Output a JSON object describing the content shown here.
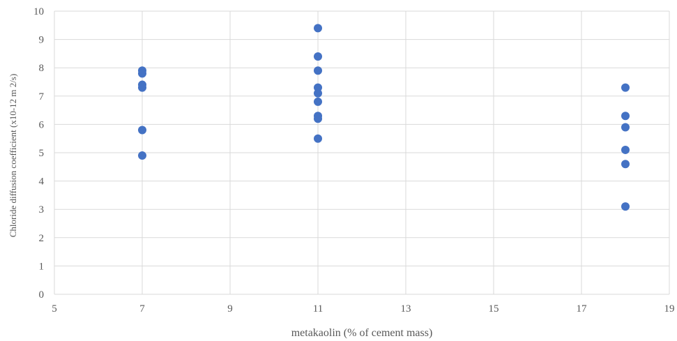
{
  "chart_data": {
    "type": "scatter",
    "title": "",
    "xlabel": "metakaolin (% of cement mass)",
    "ylabel": "Chloride diffusion coefficient (x10-12 m 2/s)",
    "xlim": [
      5,
      19
    ],
    "ylim": [
      0,
      10
    ],
    "x_ticks": [
      "5",
      "7",
      "9",
      "11",
      "13",
      "15",
      "17",
      "19"
    ],
    "y_ticks": [
      "0",
      "1",
      "2",
      "3",
      "4",
      "5",
      "6",
      "7",
      "8",
      "9",
      "10"
    ],
    "grid": true,
    "marker_color": "#4472c4",
    "gridline_color": "#d9d9d9",
    "series": [
      {
        "points": [
          {
            "x": 7,
            "y": 7.9
          },
          {
            "x": 7,
            "y": 7.8
          },
          {
            "x": 7,
            "y": 7.4
          },
          {
            "x": 7,
            "y": 7.3
          },
          {
            "x": 7,
            "y": 5.8
          },
          {
            "x": 7,
            "y": 4.9
          },
          {
            "x": 11,
            "y": 9.4
          },
          {
            "x": 11,
            "y": 8.4
          },
          {
            "x": 11,
            "y": 7.9
          },
          {
            "x": 11,
            "y": 7.3
          },
          {
            "x": 11,
            "y": 7.1
          },
          {
            "x": 11,
            "y": 6.8
          },
          {
            "x": 11,
            "y": 6.3
          },
          {
            "x": 11,
            "y": 6.2
          },
          {
            "x": 11,
            "y": 5.5
          },
          {
            "x": 18,
            "y": 7.3
          },
          {
            "x": 18,
            "y": 6.3
          },
          {
            "x": 18,
            "y": 5.9
          },
          {
            "x": 18,
            "y": 5.1
          },
          {
            "x": 18,
            "y": 4.6
          },
          {
            "x": 18,
            "y": 3.1
          }
        ]
      }
    ]
  }
}
